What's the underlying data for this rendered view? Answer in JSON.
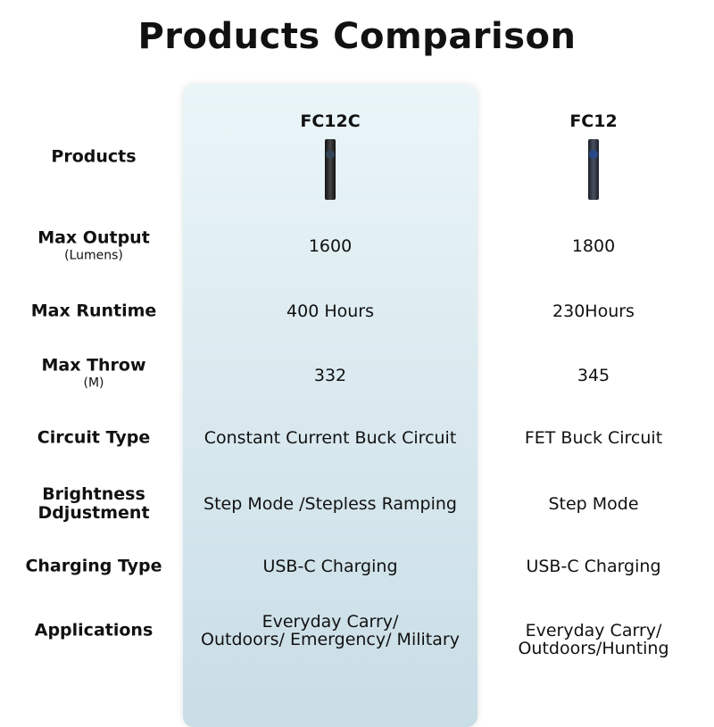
{
  "title": "Products Comparison",
  "products": [
    "FC12C",
    "FC12"
  ],
  "rows": [
    {
      "label": "Products"
    },
    {
      "label": "Max Output",
      "sub": "(Lumens)",
      "values": [
        "1600",
        "1800"
      ]
    },
    {
      "label": "Max Runtime",
      "values": [
        "400 Hours",
        "230Hours"
      ]
    },
    {
      "label": "Max Throw",
      "sub": "(M)",
      "values": [
        "332",
        "345"
      ]
    },
    {
      "label": "Circuit Type",
      "values": [
        "Constant Current Buck Circuit",
        "FET Buck Circuit"
      ]
    },
    {
      "label": "Brightness Ddjustment",
      "values": [
        "Step Mode /Stepless Ramping",
        "Step Mode"
      ]
    },
    {
      "label": "Charging Type",
      "values": [
        "USB-C Charging",
        "USB-C Charging"
      ]
    },
    {
      "label": "Applications",
      "values": [
        [
          "Everyday Carry/",
          "Outdoors/ Emergency/ Military"
        ],
        [
          "Everyday Carry/",
          "Outdoors/Hunting"
        ]
      ]
    }
  ]
}
